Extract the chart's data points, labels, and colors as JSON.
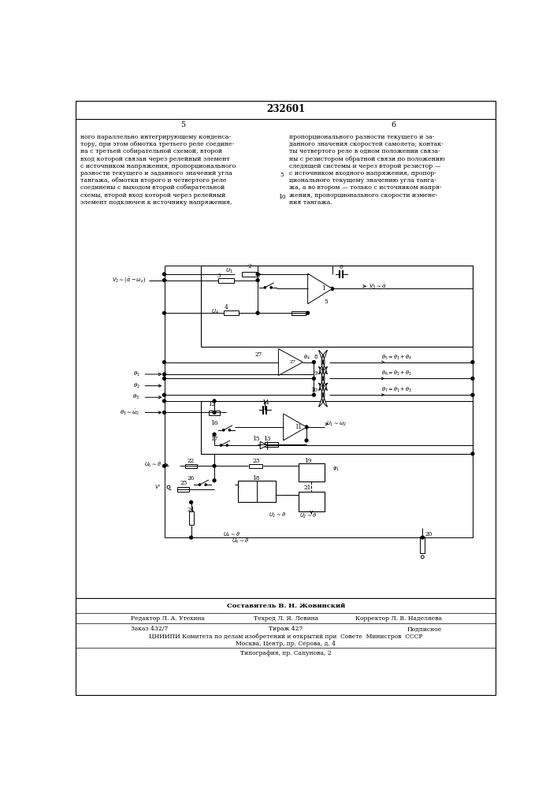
{
  "patent_number": "232601",
  "page_left": "5",
  "page_right": "6",
  "text_left": "ного параллельно интегрирующему конденса-\nтору, при этом обмотка третьего реле соедине-\nна с третьей собирательной схемой, второй\nвход которой связан через релейный элемент\nс источником напряжения, пропорционального\nразности текущего и заданного значений угла\nтангажа, обмотки второго и четвертого реле\nсоединены с выходом второй собирательной\nсхемы, второй вход которой через релейный\nэлемент подключен к источнику напряжения,",
  "text_right": "пропорционального разности текущего и за-\nданного значения скоростей самолета; контак-\nты четвертого реле в одном положении связа-\nны с резистором обратной связи по положению\nследящей системы и через второй резистор —\nс источником входного напряжения, пропор-\nционального текущему значению угла танга-\nжа, а во втором — только с источником напря-\nжения, пропорционального скорости измене-\nния тангажа.",
  "bottom_composer": "Составитель В. Н. Жовинский",
  "bottom_editor": "Редактор Л. А. Утехина",
  "bottom_tech": "Техред Л. Я. Левина",
  "bottom_corrector": "Корректор Л. В. Наделяева",
  "bottom_order": "Заказ 432/7",
  "bottom_tirazh": "Тираж 427",
  "bottom_podp": "Подписное",
  "bottom_org": "ЦНИИПИ Комитета по делам изобретений и открытий при  Совете  Министров  СССР",
  "bottom_addr": "Москва, Центр, пр. Серова, д. 4",
  "bottom_typo": "Типография, пр. Сапунова, 2",
  "bg_color": "#ffffff"
}
